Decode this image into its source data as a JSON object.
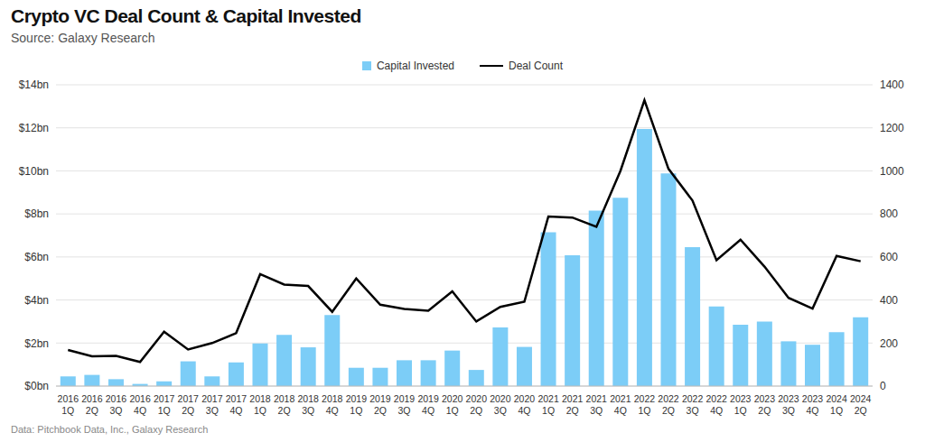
{
  "chart_data": {
    "type": "bar",
    "title": "Crypto VC Deal Count & Capital Invested",
    "subtitle": "Source: Galaxy Research",
    "footer": "Data: Pitchbook Data, Inc., Galaxy Research",
    "categories": [
      "2016 1Q",
      "2016 2Q",
      "2016 3Q",
      "2016 4Q",
      "2017 1Q",
      "2017 2Q",
      "2017 3Q",
      "2017 4Q",
      "2018 1Q",
      "2018 2Q",
      "2018 3Q",
      "2018 4Q",
      "2019 1Q",
      "2019 2Q",
      "2019 3Q",
      "2019 4Q",
      "2020 1Q",
      "2020 2Q",
      "2020 3Q",
      "2020 4Q",
      "2021 1Q",
      "2021 2Q",
      "2021 3Q",
      "2021 4Q",
      "2022 1Q",
      "2022 2Q",
      "2022 3Q",
      "2022 4Q",
      "2023 1Q",
      "2023 2Q",
      "2023 3Q",
      "2023 4Q",
      "2024 1Q",
      "2024 2Q"
    ],
    "series": [
      {
        "name": "Capital Invested",
        "type": "bar",
        "color": "#7ccdf7",
        "values": [
          0.45,
          0.52,
          0.32,
          0.1,
          0.22,
          1.15,
          0.45,
          1.1,
          1.98,
          2.38,
          1.8,
          3.3,
          0.85,
          0.85,
          1.2,
          1.2,
          1.65,
          0.75,
          2.72,
          1.82,
          7.15,
          6.08,
          8.15,
          8.75,
          11.95,
          9.88,
          6.45,
          3.7,
          2.85,
          3.0,
          2.08,
          1.92,
          2.5,
          3.2
        ]
      },
      {
        "name": "Deal Count",
        "type": "line",
        "color": "#000000",
        "axis": "y2",
        "values": [
          168,
          138,
          140,
          112,
          253,
          170,
          200,
          246,
          520,
          472,
          465,
          345,
          500,
          378,
          358,
          350,
          440,
          300,
          368,
          392,
          788,
          783,
          740,
          1000,
          1328,
          1010,
          862,
          585,
          680,
          555,
          410,
          360,
          605,
          580
        ]
      }
    ],
    "ylim": [
      0,
      14
    ],
    "yticks": [
      {
        "value": 0,
        "label": "$0bn"
      },
      {
        "value": 2,
        "label": "$2bn"
      },
      {
        "value": 4,
        "label": "$4bn"
      },
      {
        "value": 6,
        "label": "$6bn"
      },
      {
        "value": 8,
        "label": "$8bn"
      },
      {
        "value": 10,
        "label": "$10bn"
      },
      {
        "value": 12,
        "label": "$12bn"
      },
      {
        "value": 14,
        "label": "$14bn"
      }
    ],
    "y2lim": [
      0,
      1400
    ],
    "y2ticks": [
      0,
      200,
      400,
      600,
      800,
      1000,
      1200,
      1400
    ],
    "grid": true,
    "legend": "top"
  }
}
